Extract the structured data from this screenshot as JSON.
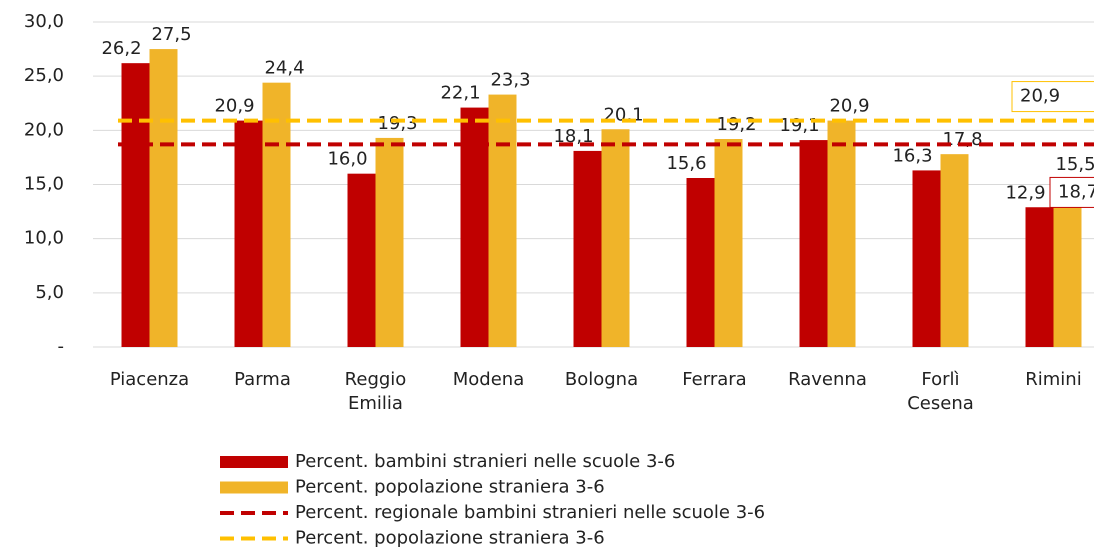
{
  "chart_data": {
    "type": "bar",
    "categories": [
      "Piacenza",
      "Parma",
      "Reggio Emilia",
      "Modena",
      "Bologna",
      "Ferrara",
      "Ravenna",
      "Forlì Cesena",
      "Rimini"
    ],
    "series": [
      {
        "name": "Percent. bambini stranieri nelle scuole 3-6",
        "color": "#c00000",
        "values": [
          26.2,
          20.9,
          16.0,
          22.1,
          18.1,
          15.6,
          19.1,
          16.3,
          12.9
        ],
        "value_labels": [
          "26,2",
          "20,9",
          "16,0",
          "22,1",
          "18,1",
          "15,6",
          "19,1",
          "16,3",
          "12,9"
        ]
      },
      {
        "name": "Percent. popolazione straniera 3-6",
        "color": "#f0b429",
        "values": [
          27.5,
          24.4,
          19.3,
          23.3,
          20.1,
          19.2,
          20.9,
          17.8,
          15.5
        ],
        "value_labels": [
          "27,5",
          "24,4",
          "19,3",
          "23,3",
          "20,1",
          "19,2",
          "20,9",
          "17,8",
          "15,5"
        ]
      }
    ],
    "reference_lines": [
      {
        "name": "Percent. regionale bambini stranieri nelle scuole 3-6",
        "color": "#c00000",
        "value": 18.7,
        "value_label": "18,7"
      },
      {
        "name": "Percent. popolazione straniera 3-6",
        "color": "#ffc000",
        "value": 20.9,
        "value_label": "20,9"
      }
    ],
    "ylim": [
      0,
      30
    ],
    "yticks": [
      {
        "value": 0,
        "label": "-"
      },
      {
        "value": 5,
        "label": "5,0"
      },
      {
        "value": 10,
        "label": "10,0"
      },
      {
        "value": 15,
        "label": "15,0"
      },
      {
        "value": 20,
        "label": "20,0"
      },
      {
        "value": 25,
        "label": "25,0"
      },
      {
        "value": 30,
        "label": "30,0"
      }
    ],
    "grid": true
  }
}
